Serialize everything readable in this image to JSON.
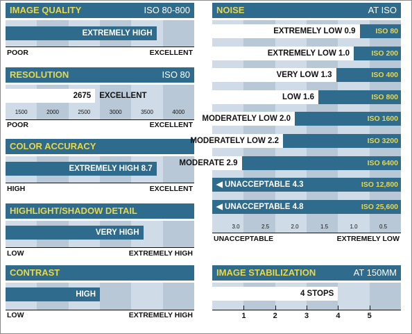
{
  "chart_data": [
    {
      "type": "bar",
      "title": "IMAGE QUALITY",
      "subtitle": "ISO 80-800",
      "categories": [
        "IMAGE QUALITY"
      ],
      "values": [
        "EXTREMELY HIGH"
      ],
      "bar_label": "EXTREMELY HIGH",
      "bar_level": 0.8,
      "scale_min_label": "POOR",
      "scale_max_label": "EXCELLENT"
    },
    {
      "type": "bar",
      "title": "RESOLUTION",
      "subtitle": "ISO 80",
      "values": [
        2675
      ],
      "bar_label": "2675",
      "rating": "EXCELLENT",
      "xlim": [
        1250,
        4250
      ],
      "xticks": [
        "1500",
        "2000",
        "2500",
        "3000",
        "3500",
        "4000"
      ],
      "scale_min_label": "POOR",
      "scale_max_label": "EXCELLENT"
    },
    {
      "type": "bar",
      "title": "COLOR ACCURACY",
      "bar_label": "EXTREMELY HIGH 8.7",
      "bar_level": 0.8,
      "scale_min_label": "HIGH",
      "scale_max_label": "EXCELLENT"
    },
    {
      "type": "bar",
      "title": "HIGHLIGHT/SHADOW DETAIL",
      "bar_label": "VERY HIGH",
      "bar_level": 0.73,
      "scale_min_label": "LOW",
      "scale_max_label": "EXTREMELY HIGH"
    },
    {
      "type": "bar",
      "title": "CONTRAST",
      "bar_label": "HIGH",
      "bar_level": 0.5,
      "scale_min_label": "LOW",
      "scale_max_label": "EXTREMELY HIGH"
    },
    {
      "type": "bar",
      "title": "NOISE",
      "subtitle": "AT ISO",
      "xlim": [
        3.4,
        0.2
      ],
      "xticks": [
        "3.0",
        "2.5",
        "2.0",
        "1.5",
        "1.0",
        "0.5"
      ],
      "scale_min_label": "UNACCEPTABLE",
      "scale_max_label": "EXTREMELY LOW",
      "series": [
        {
          "iso": "ISO 80",
          "label": "EXTREMELY LOW 0.9",
          "value": 0.9,
          "offscale": false
        },
        {
          "iso": "ISO 200",
          "label": "EXTREMELY LOW 1.0",
          "value": 1.0,
          "offscale": false
        },
        {
          "iso": "ISO 400",
          "label": "VERY LOW 1.3",
          "value": 1.3,
          "offscale": false
        },
        {
          "iso": "ISO 800",
          "label": "LOW 1.6",
          "value": 1.6,
          "offscale": false
        },
        {
          "iso": "ISO 1600",
          "label": "MODERATELY LOW 2.0",
          "value": 2.0,
          "offscale": false
        },
        {
          "iso": "ISO 3200",
          "label": "MODERATELY LOW 2.2",
          "value": 2.2,
          "offscale": false
        },
        {
          "iso": "ISO 6400",
          "label": "MODERATE 2.9",
          "value": 2.9,
          "offscale": false
        },
        {
          "iso": "ISO 12,800",
          "label": "UNACCEPTABLE 4.3",
          "value": 4.3,
          "offscale": true
        },
        {
          "iso": "ISO 25,600",
          "label": "UNACCEPTABLE 4.8",
          "value": 4.8,
          "offscale": true
        }
      ]
    },
    {
      "type": "bar",
      "title": "IMAGE STABILIZATION",
      "subtitle": "AT 150MM",
      "bar_label": "4 STOPS",
      "values": [
        4
      ],
      "xlim": [
        0,
        6
      ],
      "xticks": [
        "1",
        "2",
        "3",
        "4",
        "5"
      ]
    }
  ],
  "colors": {
    "header": "#2f6b8c",
    "header_text": "#e8d84a",
    "stripe_light": "#cfdbe6",
    "stripe_dark": "#b8c8d6",
    "bar": "#2f6b8c"
  }
}
